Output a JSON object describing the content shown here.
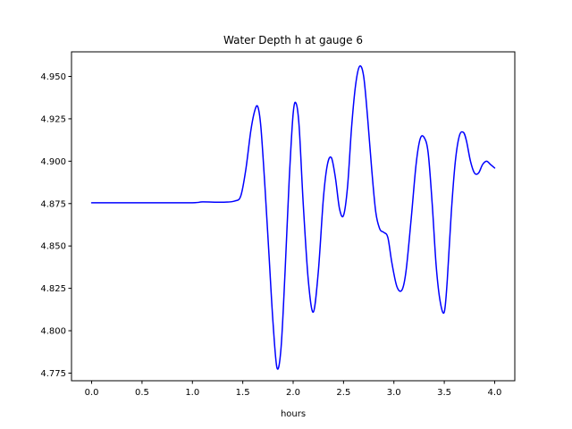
{
  "chart_data": {
    "type": "line",
    "title": "Water Depth h at gauge 6",
    "xlabel": "hours",
    "ylabel": "",
    "xlim": [
      -0.2,
      4.2
    ],
    "ylim": [
      4.7705,
      4.9645
    ],
    "x_ticks": [
      0.0,
      0.5,
      1.0,
      1.5,
      2.0,
      2.5,
      3.0,
      3.5,
      4.0
    ],
    "x_tick_labels": [
      "0.0",
      "0.5",
      "1.0",
      "1.5",
      "2.0",
      "2.5",
      "3.0",
      "3.5",
      "4.0"
    ],
    "y_ticks": [
      4.775,
      4.8,
      4.825,
      4.85,
      4.875,
      4.9,
      4.925,
      4.95
    ],
    "y_tick_labels": [
      "4.775",
      "4.800",
      "4.825",
      "4.850",
      "4.875",
      "4.900",
      "4.925",
      "4.950"
    ],
    "grid": false,
    "series": [
      {
        "color": "#0000ff",
        "x": [
          0.0,
          0.5,
          1.0,
          1.1,
          1.3,
          1.42,
          1.48,
          1.53,
          1.58,
          1.62,
          1.65,
          1.68,
          1.72,
          1.76,
          1.8,
          1.84,
          1.88,
          1.92,
          1.96,
          2.0,
          2.03,
          2.06,
          2.1,
          2.15,
          2.2,
          2.25,
          2.3,
          2.34,
          2.38,
          2.42,
          2.46,
          2.5,
          2.54,
          2.58,
          2.62,
          2.66,
          2.7,
          2.74,
          2.78,
          2.82,
          2.86,
          2.9,
          2.94,
          2.98,
          3.03,
          3.08,
          3.12,
          3.17,
          3.22,
          3.26,
          3.3,
          3.34,
          3.38,
          3.42,
          3.46,
          3.5,
          3.53,
          3.57,
          3.61,
          3.65,
          3.69,
          3.72,
          3.76,
          3.8,
          3.84,
          3.88,
          3.92,
          3.96,
          4.0
        ],
        "y": [
          4.8755,
          4.8755,
          4.8755,
          4.876,
          4.8758,
          4.8765,
          4.8795,
          4.895,
          4.918,
          4.93,
          4.932,
          4.92,
          4.885,
          4.845,
          4.805,
          4.778,
          4.79,
          4.835,
          4.888,
          4.928,
          4.934,
          4.92,
          4.875,
          4.83,
          4.811,
          4.835,
          4.878,
          4.898,
          4.902,
          4.89,
          4.872,
          4.868,
          4.885,
          4.92,
          4.945,
          4.956,
          4.95,
          4.925,
          4.895,
          4.87,
          4.86,
          4.858,
          4.855,
          4.84,
          4.826,
          4.824,
          4.835,
          4.865,
          4.898,
          4.913,
          4.914,
          4.905,
          4.875,
          4.838,
          4.817,
          4.811,
          4.83,
          4.87,
          4.9,
          4.915,
          4.917,
          4.912,
          4.9,
          4.893,
          4.893,
          4.898,
          4.9,
          4.898,
          4.896
        ]
      }
    ]
  }
}
